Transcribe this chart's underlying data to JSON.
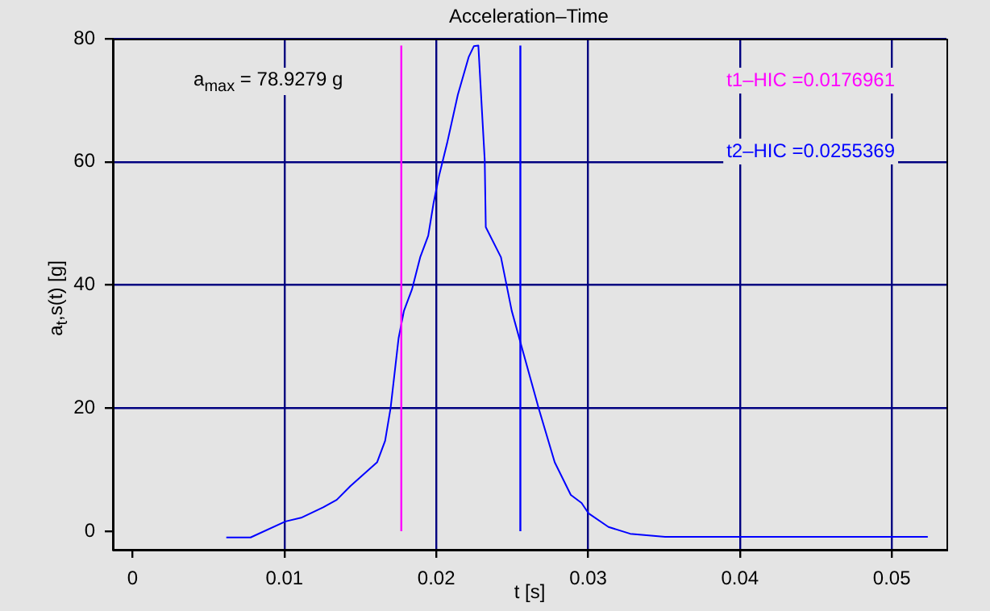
{
  "chart_data": {
    "type": "line",
    "title": "Acceleration–Time",
    "xlabel": "t [s]",
    "ylabel": "a$_{t}$,s(t) [g]",
    "x": [
      0.00617,
      0.00777,
      0.01007,
      0.0111,
      0.01255,
      0.01344,
      0.01433,
      0.0161,
      0.01663,
      0.01699,
      0.01752,
      0.01787,
      0.0184,
      0.01894,
      0.01947,
      0.01982,
      0.02018,
      0.02071,
      0.02142,
      0.02213,
      0.02248,
      0.02277,
      0.02301,
      0.02319,
      0.02326,
      0.02426,
      0.02497,
      0.02556,
      0.02674,
      0.0278,
      0.02886,
      0.02957,
      0.03003,
      0.03134,
      0.03277,
      0.03507,
      0.05237
    ],
    "series": [
      {
        "color": "#0000ff",
        "values": [
          -1,
          -1,
          1.6,
          2.2,
          3.9,
          5.1,
          7.3,
          11.2,
          14.7,
          20,
          31.4,
          35.8,
          39.3,
          44.5,
          48,
          53.3,
          57.7,
          63,
          70.9,
          77,
          78.8,
          78.9,
          68.2,
          60.3,
          49.4,
          44.5,
          35.8,
          30.5,
          20,
          11.2,
          5.9,
          4.6,
          2.9,
          0.7,
          -0.4,
          -0.9,
          -0.9
        ]
      }
    ],
    "xlim": [
      -0.0013,
      0.0536
    ],
    "xticks": [
      0,
      0.01,
      0.02,
      0.03,
      0.04,
      0.05
    ],
    "ylim": [
      -3,
      80
    ],
    "yticks": [
      0,
      20,
      40,
      60,
      80
    ],
    "ref_lines": [
      {
        "axis": "x",
        "value": 0.0176961,
        "label": "t1–HIC =0.0176961",
        "color": "#ff00ff"
      },
      {
        "axis": "x",
        "value": 0.0255369,
        "label": "t2–HIC =0.0255369",
        "color": "#0000ff"
      }
    ],
    "annotations": [
      "a$_{max}$ = 78.9279 g"
    ],
    "grid": true,
    "legend": false,
    "marker": "none",
    "line_style": "solid"
  }
}
